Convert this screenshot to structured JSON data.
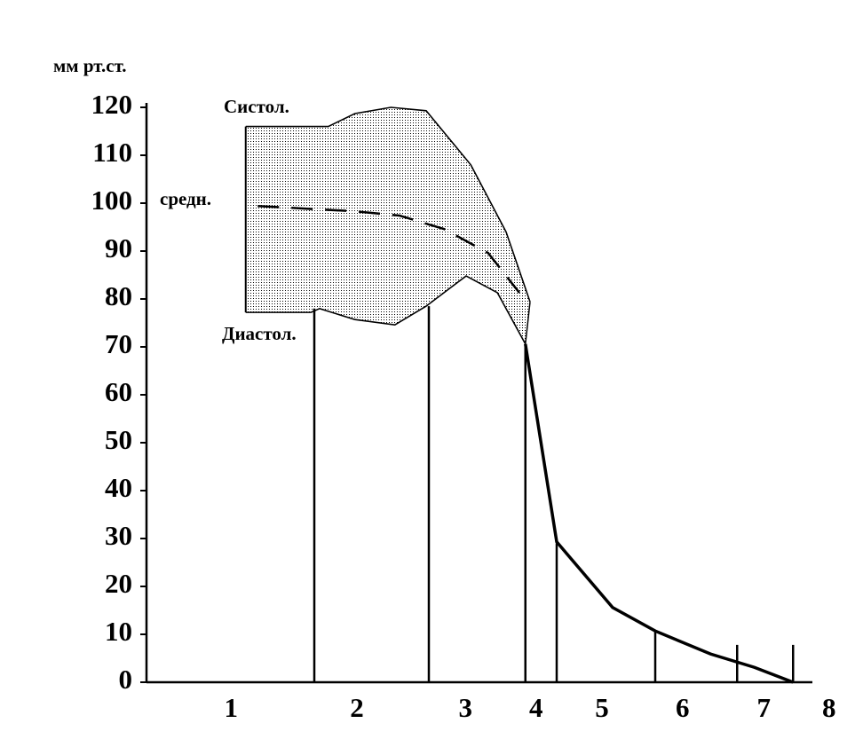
{
  "chart_data": {
    "type": "line",
    "ylabel": "мм рт.ст.",
    "xlim": [
      0,
      10
    ],
    "ylim": [
      0,
      120
    ],
    "yticks": [
      0,
      10,
      20,
      30,
      40,
      50,
      60,
      70,
      80,
      90,
      100,
      110,
      120
    ],
    "xticks": [
      {
        "value": 1.27,
        "label": "1"
      },
      {
        "value": 3.16,
        "label": "2"
      },
      {
        "value": 4.79,
        "label": "3"
      },
      {
        "value": 5.85,
        "label": "4"
      },
      {
        "value": 6.84,
        "label": "5"
      },
      {
        "value": 8.05,
        "label": "6"
      },
      {
        "value": 9.27,
        "label": "7"
      },
      {
        "value": 10.25,
        "label": "8"
      }
    ],
    "band_fill": true,
    "series": [
      {
        "name": "Систол.",
        "color": "#000000",
        "x": [
          1.49,
          2.73,
          3.13,
          3.67,
          4.2,
          4.87,
          5.4,
          5.76
        ],
        "values": [
          116,
          116,
          118.7,
          120,
          119.3,
          108,
          94,
          79.4
        ]
      },
      {
        "name": "средн.",
        "color": "#000000",
        "dashed": true,
        "x": [
          1.67,
          3.13,
          3.8,
          4.47,
          5.13,
          5.6
        ],
        "values": [
          99.4,
          98.3,
          97.4,
          94.6,
          89.6,
          81.3
        ]
      },
      {
        "name": "Диастол.",
        "color": "#000000",
        "x": [
          1.49,
          2.47,
          2.6,
          3.13,
          3.73,
          4.2,
          4.8,
          5.27,
          5.69
        ],
        "values": [
          77.2,
          77.2,
          78,
          75.7,
          74.6,
          78.5,
          84.8,
          81.3,
          70.6
        ]
      },
      {
        "color": "#000000",
        "x": [
          5.69,
          6.16,
          7.0,
          7.64,
          8.47,
          9.13,
          9.71
        ],
        "values": [
          70.6,
          29.3,
          15.6,
          10.7,
          5.9,
          3.1,
          0
        ]
      }
    ],
    "boundaries": {
      "x": [
        2.52,
        4.24,
        5.69,
        6.16,
        7.64,
        8.87,
        9.71
      ],
      "tops": [
        78,
        78.5,
        70.5,
        29,
        10.7,
        7.8,
        7.8
      ]
    }
  }
}
